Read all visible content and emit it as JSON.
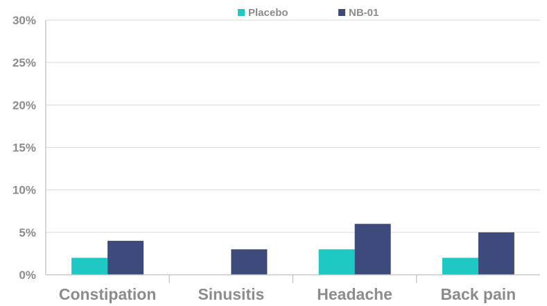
{
  "chart_data": {
    "type": "bar",
    "title": "",
    "xlabel": "",
    "ylabel": "",
    "categories": [
      "Constipation",
      "Sinusitis",
      "Headache",
      "Back pain"
    ],
    "series": [
      {
        "name": "Placebo",
        "color": "#1fc9c3",
        "values": [
          2,
          0,
          3,
          2
        ]
      },
      {
        "name": "NB-01",
        "color": "#3d4a7c",
        "values": [
          4,
          3,
          6,
          5
        ]
      }
    ],
    "ylim": [
      0,
      30
    ],
    "y_ticks": [
      0,
      5,
      10,
      15,
      20,
      25,
      30
    ],
    "y_tick_labels": [
      "0%",
      "5%",
      "10%",
      "15%",
      "20%",
      "25%",
      "30%"
    ],
    "grid": true,
    "legend_position": "top-center"
  }
}
